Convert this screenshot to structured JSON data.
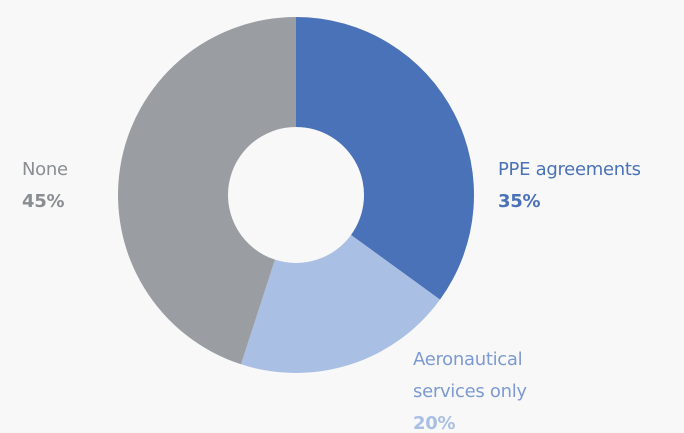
{
  "chart_data": {
    "type": "pie",
    "donut": true,
    "categories": [
      "PPE agreements",
      "Aeronautical services only",
      "None"
    ],
    "values": [
      35,
      20,
      45
    ],
    "value_labels": [
      "35%",
      "20%",
      "45%"
    ],
    "colors": [
      "#4a72b8",
      "#a9bfe3",
      "#9a9ea3"
    ]
  }
}
